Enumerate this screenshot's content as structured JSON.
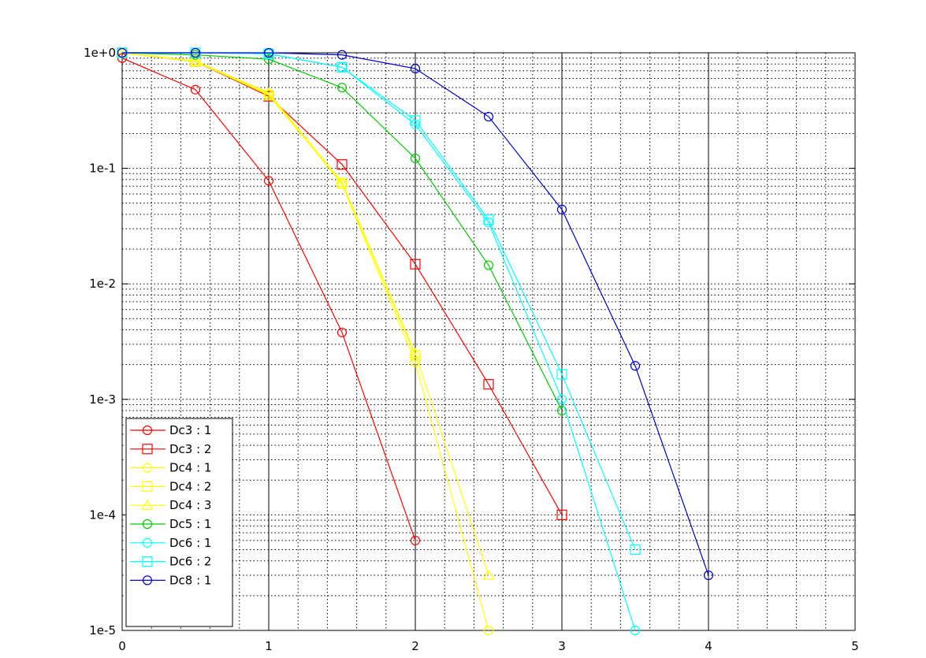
{
  "chart_data": {
    "type": "line",
    "title": "",
    "xlabel": "",
    "ylabel": "",
    "xlim": [
      0,
      5
    ],
    "ylim": [
      1e-05,
      1
    ],
    "yscale": "log",
    "grid": "major-solid-x, minor-dotted-xy",
    "legend_position": "bottom-left",
    "x_tick_labels": [
      "0",
      "1",
      "2",
      "3",
      "4",
      "5"
    ],
    "y_tick_labels": [
      "1e-5",
      "1e-4",
      "1e-3",
      "1e-2",
      "1e-1",
      "1e+0"
    ],
    "series": [
      {
        "name": "Dc3 : 1",
        "color": "#ff0000",
        "marker": "circle",
        "x": [
          0,
          0.5,
          1,
          1.5,
          2
        ],
        "y": [
          0.9,
          0.48,
          0.078,
          0.0038,
          6e-05
        ]
      },
      {
        "name": "Dc3 : 2",
        "color": "#ff0000",
        "marker": "square",
        "x": [
          0,
          0.5,
          1,
          1.5,
          2,
          2.5,
          3
        ],
        "y": [
          1.0,
          0.84,
          0.42,
          0.108,
          0.0148,
          0.00135,
          0.0001
        ]
      },
      {
        "name": "Dc4 : 1",
        "color": "#ffff00",
        "marker": "circle",
        "x": [
          0,
          0.5,
          1,
          1.5,
          2,
          2.5
        ],
        "y": [
          1.0,
          0.85,
          0.44,
          0.073,
          0.0021,
          1e-05
        ]
      },
      {
        "name": "Dc4 : 2",
        "color": "#ffff00",
        "marker": "square",
        "x": [
          0,
          0.5,
          1,
          1.5,
          2
        ],
        "y": [
          1.0,
          0.84,
          0.43,
          0.074,
          0.0024
        ]
      },
      {
        "name": "Dc4 : 3",
        "color": "#ffff00",
        "marker": "triangle",
        "x": [
          0,
          0.5,
          1,
          1.5,
          2,
          2.5
        ],
        "y": [
          1.0,
          0.85,
          0.45,
          0.076,
          0.0025,
          3e-05
        ]
      },
      {
        "name": "Dc5 : 1",
        "color": "#00cc00",
        "marker": "circle",
        "x": [
          0,
          0.5,
          1,
          1.5,
          2,
          2.5,
          3
        ],
        "y": [
          1.0,
          0.96,
          0.88,
          0.5,
          0.122,
          0.0145,
          0.0008
        ]
      },
      {
        "name": "Dc6 : 1",
        "color": "#00ffff",
        "marker": "circle",
        "x": [
          0,
          0.5,
          1,
          1.5,
          2,
          2.5,
          3,
          3.5
        ],
        "y": [
          1.0,
          1.0,
          0.98,
          0.75,
          0.24,
          0.034,
          0.001,
          1e-05
        ]
      },
      {
        "name": "Dc6 : 2",
        "color": "#00ffff",
        "marker": "square",
        "x": [
          0,
          0.5,
          1,
          1.5,
          2,
          2.5,
          3,
          3.5
        ],
        "y": [
          1.0,
          1.0,
          0.98,
          0.75,
          0.26,
          0.036,
          0.00165,
          5e-05
        ]
      },
      {
        "name": "Dc8 : 1",
        "color": "#0000cc",
        "marker": "circle",
        "x": [
          0,
          0.5,
          1,
          1.5,
          2,
          2.5,
          3,
          3.5,
          4
        ],
        "y": [
          1.0,
          1.0,
          1.0,
          0.96,
          0.73,
          0.28,
          0.044,
          0.00195,
          3e-05
        ]
      }
    ]
  }
}
